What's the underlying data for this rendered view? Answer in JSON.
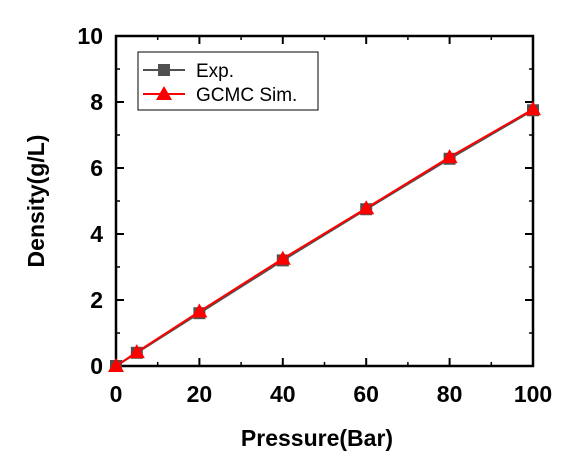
{
  "chart_data": {
    "type": "line",
    "xlabel": "Pressure(Bar)",
    "ylabel": "Density(g/L)",
    "xlim": [
      0,
      100
    ],
    "ylim": [
      0,
      10
    ],
    "x_ticks": [
      0,
      20,
      40,
      60,
      80,
      100
    ],
    "y_ticks": [
      0,
      2,
      4,
      6,
      8,
      10
    ],
    "grid": false,
    "legend_position": "top-left",
    "x": [
      0,
      5,
      20,
      40,
      60,
      80,
      100
    ],
    "series": [
      {
        "name": "Exp.",
        "marker": "square",
        "color": "#505050",
        "values": [
          0,
          0.4,
          1.6,
          3.2,
          4.75,
          6.28,
          7.75
        ]
      },
      {
        "name": "GCMC Sim.",
        "marker": "triangle",
        "color": "#ff0000",
        "values": [
          0,
          0.42,
          1.65,
          3.25,
          4.78,
          6.33,
          7.78
        ]
      }
    ]
  }
}
